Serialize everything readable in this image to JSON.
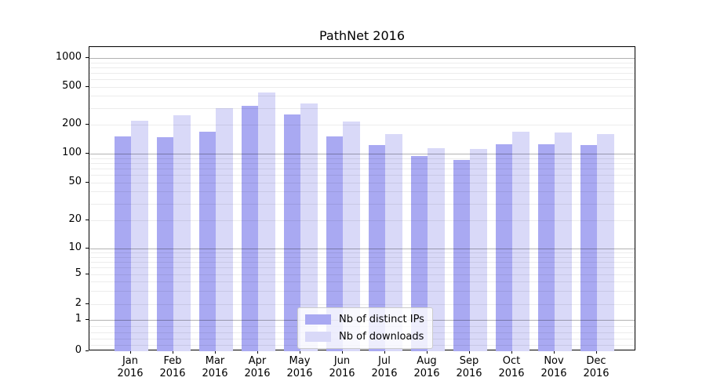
{
  "title": "PathNet 2016",
  "legend": {
    "items": [
      {
        "label": "Nb of distinct IPs",
        "color": "#a9a9f2"
      },
      {
        "label": "Nb of downloads",
        "color": "#d9d9f8"
      }
    ]
  },
  "axes": {
    "y_tick_labels": [
      "0",
      "1",
      "2",
      "5",
      "10",
      "20",
      "50",
      "100",
      "200",
      "500",
      "1000"
    ],
    "x_tick_labels": [
      [
        "Jan",
        "2016"
      ],
      [
        "Feb",
        "2016"
      ],
      [
        "Mar",
        "2016"
      ],
      [
        "Apr",
        "2016"
      ],
      [
        "May",
        "2016"
      ],
      [
        "Jun",
        "2016"
      ],
      [
        "Jul",
        "2016"
      ],
      [
        "Aug",
        "2016"
      ],
      [
        "Sep",
        "2016"
      ],
      [
        "Oct",
        "2016"
      ],
      [
        "Nov",
        "2016"
      ],
      [
        "Dec",
        "2016"
      ]
    ]
  },
  "chart_data": {
    "type": "bar",
    "title": "PathNet 2016",
    "categories": [
      "Jan 2016",
      "Feb 2016",
      "Mar 2016",
      "Apr 2016",
      "May 2016",
      "Jun 2016",
      "Jul 2016",
      "Aug 2016",
      "Sep 2016",
      "Oct 2016",
      "Nov 2016",
      "Dec 2016"
    ],
    "series": [
      {
        "name": "Nb of distinct IPs",
        "color": "#a9a9f2",
        "values": [
          150,
          147,
          170,
          313,
          255,
          151,
          122,
          95,
          86,
          126,
          125,
          122
        ]
      },
      {
        "name": "Nb of downloads",
        "color": "#d9d9f8",
        "values": [
          220,
          250,
          298,
          430,
          330,
          214,
          161,
          113,
          111,
          170,
          166,
          161
        ]
      }
    ],
    "xlabel": "",
    "ylabel": "",
    "yscale": "symlog",
    "yticks": [
      0,
      1,
      2,
      5,
      10,
      20,
      50,
      100,
      200,
      500,
      1000
    ],
    "ylim": [
      0,
      1300
    ],
    "grid": "both",
    "legend_position": "lower center"
  }
}
